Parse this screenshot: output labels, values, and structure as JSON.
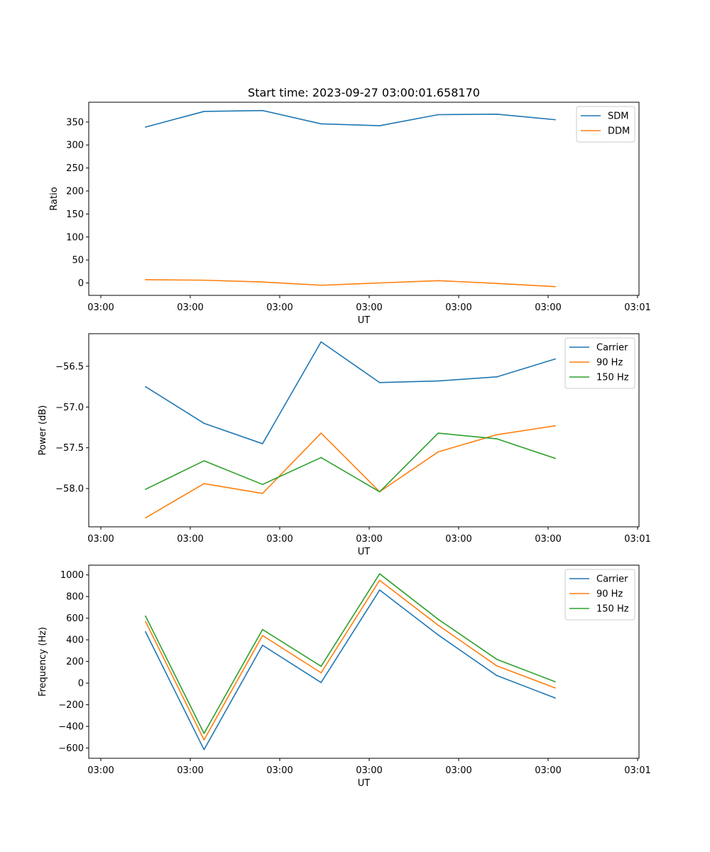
{
  "chart_data": [
    {
      "type": "line",
      "title": "Start time: 2023-09-27 03:00:01.658170",
      "xlabel": "UT",
      "ylabel": "Ratio",
      "x_tick_labels": [
        "03:00",
        "03:00",
        "03:00",
        "03:00",
        "03:00",
        "03:00",
        "03:01"
      ],
      "x": [
        0.5,
        1.15,
        1.8,
        2.45,
        3.1,
        3.75,
        4.4,
        5.05
      ],
      "xlim": [
        -0.13,
        5.98
      ],
      "ylim": [
        -27,
        393
      ],
      "y_ticks": [
        0,
        50,
        100,
        150,
        200,
        250,
        300,
        350
      ],
      "grid": false,
      "legend_position": "upper right",
      "series": [
        {
          "name": "SDM",
          "color": "#1f77b4",
          "values": [
            339,
            373,
            375,
            346,
            342,
            366,
            367,
            355
          ]
        },
        {
          "name": "DDM",
          "color": "#ff7f0e",
          "values": [
            7,
            6,
            2,
            -5,
            0,
            5,
            -1,
            -8
          ]
        }
      ]
    },
    {
      "type": "line",
      "title": "",
      "xlabel": "UT",
      "ylabel": "Power (dB)",
      "x_tick_labels": [
        "03:00",
        "03:00",
        "03:00",
        "03:00",
        "03:00",
        "03:00",
        "03:01"
      ],
      "x": [
        0.5,
        1.15,
        1.8,
        2.45,
        3.1,
        3.75,
        4.4,
        5.05
      ],
      "xlim": [
        -0.13,
        5.98
      ],
      "ylim": [
        -58.47,
        -56.1
      ],
      "y_ticks": [
        -58.0,
        -57.5,
        -57.0,
        -56.5
      ],
      "y_tick_labels": [
        "−58.0",
        "−57.5",
        "−57.0",
        "−56.5"
      ],
      "grid": false,
      "legend_position": "upper right",
      "series": [
        {
          "name": "Carrier",
          "color": "#1f77b4",
          "values": [
            -56.75,
            -57.2,
            -57.45,
            -56.2,
            -56.7,
            -56.68,
            -56.63,
            -56.41
          ]
        },
        {
          "name": "90 Hz",
          "color": "#ff7f0e",
          "values": [
            -58.36,
            -57.94,
            -58.06,
            -57.32,
            -58.04,
            -57.55,
            -57.34,
            -57.23
          ]
        },
        {
          "name": "150 Hz",
          "color": "#2ca02c",
          "values": [
            -58.01,
            -57.66,
            -57.95,
            -57.62,
            -58.04,
            -57.32,
            -57.39,
            -57.63
          ]
        }
      ]
    },
    {
      "type": "line",
      "title": "",
      "xlabel": "UT",
      "ylabel": "Frequency (Hz)",
      "x_tick_labels": [
        "03:00",
        "03:00",
        "03:00",
        "03:00",
        "03:00",
        "03:00",
        "03:01"
      ],
      "x": [
        0.5,
        1.15,
        1.8,
        2.45,
        3.1,
        3.75,
        4.4,
        5.05
      ],
      "xlim": [
        -0.13,
        5.98
      ],
      "ylim": [
        -695,
        1090
      ],
      "y_ticks": [
        -600,
        -400,
        -200,
        0,
        200,
        400,
        600,
        800,
        1000
      ],
      "y_tick_labels": [
        "−600",
        "−400",
        "−200",
        "0",
        "200",
        "400",
        "600",
        "800",
        "1000"
      ],
      "grid": false,
      "legend_position": "upper right",
      "series": [
        {
          "name": "Carrier",
          "color": "#1f77b4",
          "values": [
            475,
            -615,
            350,
            5,
            860,
            445,
            70,
            -138
          ]
        },
        {
          "name": "90 Hz",
          "color": "#ff7f0e",
          "values": [
            570,
            -525,
            440,
            95,
            950,
            535,
            160,
            -45
          ]
        },
        {
          "name": "150 Hz",
          "color": "#2ca02c",
          "values": [
            620,
            -465,
            495,
            155,
            1010,
            590,
            220,
            12
          ]
        }
      ]
    }
  ]
}
